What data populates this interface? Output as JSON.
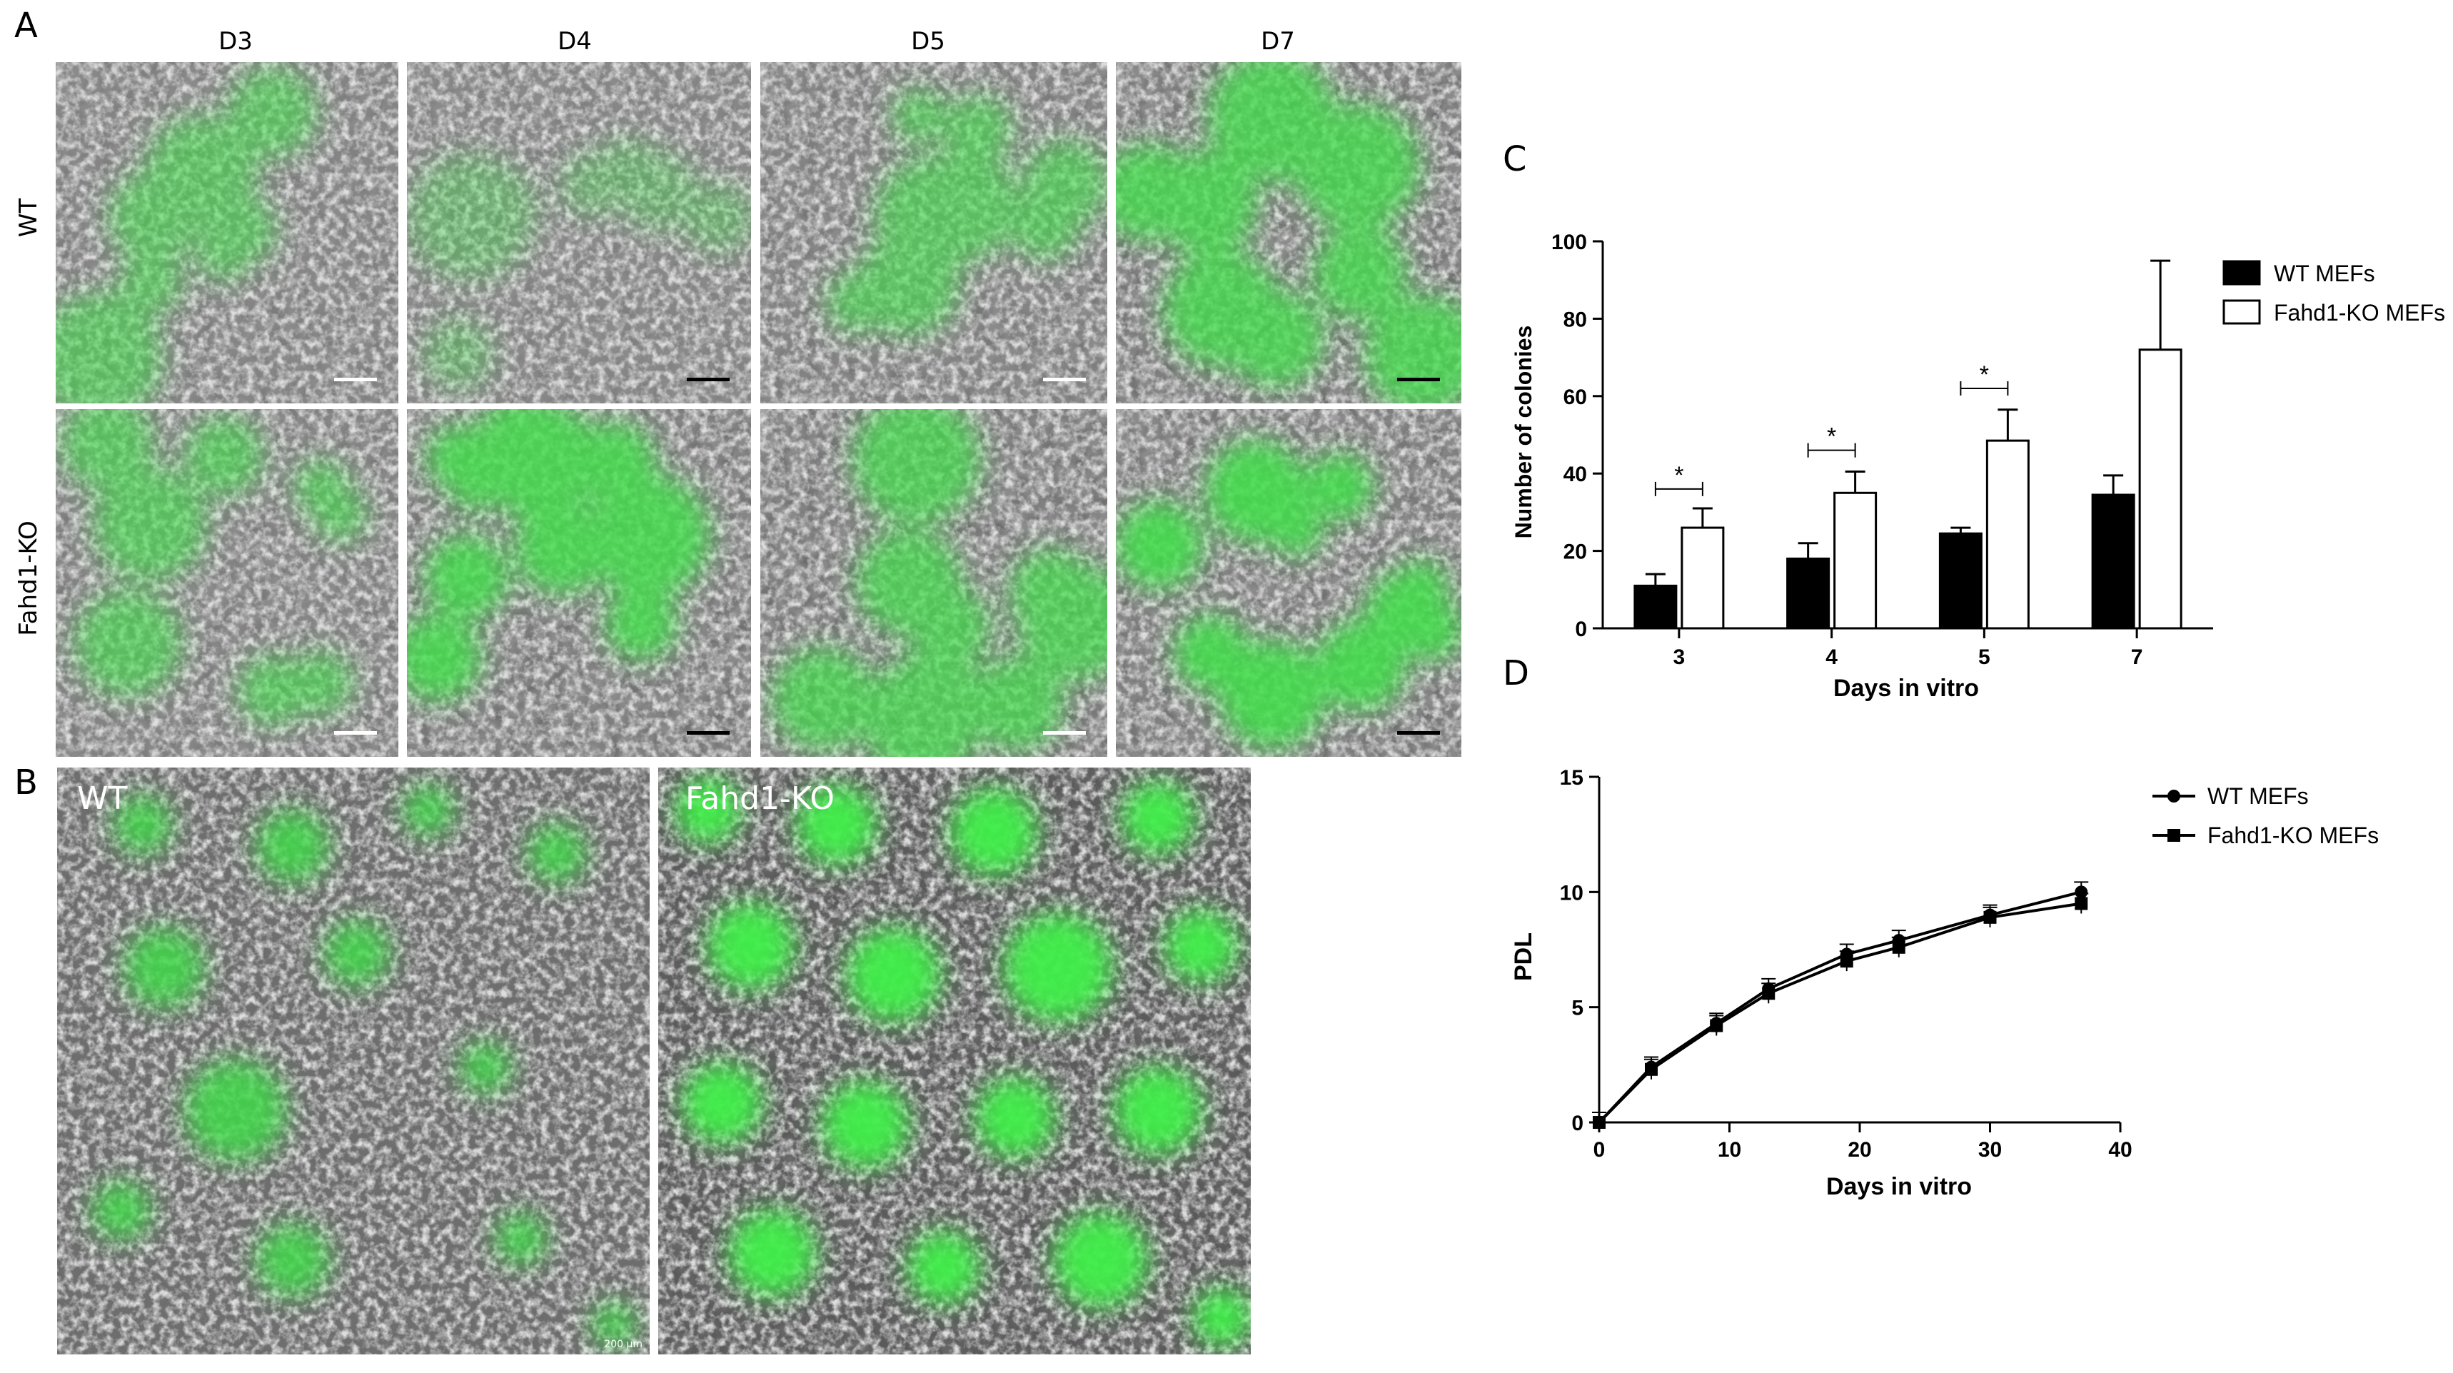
{
  "panel_letters": {
    "a": "A",
    "b": "B",
    "c": "C",
    "d": "D"
  },
  "panel_a": {
    "columns": [
      "D3",
      "D4",
      "D5",
      "D7"
    ],
    "rows": [
      "WT",
      "Fahd1-KO"
    ]
  },
  "panel_b": {
    "left_label": "WT",
    "right_label": "Fahd1-KO",
    "scale_text": "200 µm"
  },
  "chart_data": [
    {
      "type": "bar",
      "panel": "C",
      "title": "",
      "xlabel": "Days in vitro",
      "ylabel": "Number of colonies",
      "categories": [
        "3",
        "4",
        "5",
        "7"
      ],
      "ylim": [
        0,
        100
      ],
      "yticks": [
        0,
        20,
        40,
        60,
        80,
        100
      ],
      "series": [
        {
          "name": "WT MEFs",
          "values": [
            11,
            18,
            24.5,
            34.5
          ],
          "errors": [
            3,
            4,
            1.5,
            5
          ],
          "fill": "#000000"
        },
        {
          "name": "Fahd1-KO MEFs",
          "values": [
            26,
            35,
            48.5,
            72
          ],
          "errors": [
            5,
            5.5,
            8,
            23
          ],
          "fill": "#ffffff"
        }
      ],
      "significance": [
        {
          "category": "3",
          "label": "*",
          "height": 36
        },
        {
          "category": "4",
          "label": "*",
          "height": 46
        },
        {
          "category": "5",
          "label": "*",
          "height": 62
        }
      ],
      "legend_position": "right",
      "grid": false
    },
    {
      "type": "line",
      "panel": "D",
      "title": "",
      "xlabel": "Days in vitro",
      "ylabel": "PDL",
      "xlim": [
        0,
        40
      ],
      "ylim": [
        0,
        15
      ],
      "xticks": [
        0,
        10,
        20,
        30,
        40
      ],
      "yticks": [
        0,
        5,
        10,
        15
      ],
      "series": [
        {
          "name": "WT MEFs",
          "marker": "circle",
          "x": [
            0,
            4,
            9,
            13,
            19,
            23,
            30,
            37
          ],
          "y": [
            0,
            2.4,
            4.3,
            5.8,
            7.3,
            7.9,
            9.0,
            10.0
          ]
        },
        {
          "name": "Fahd1-KO MEFs",
          "marker": "square",
          "x": [
            0,
            4,
            9,
            13,
            19,
            23,
            30,
            37
          ],
          "y": [
            0,
            2.3,
            4.2,
            5.6,
            7.0,
            7.6,
            8.9,
            9.5
          ]
        }
      ],
      "legend_position": "right",
      "grid": false
    }
  ]
}
